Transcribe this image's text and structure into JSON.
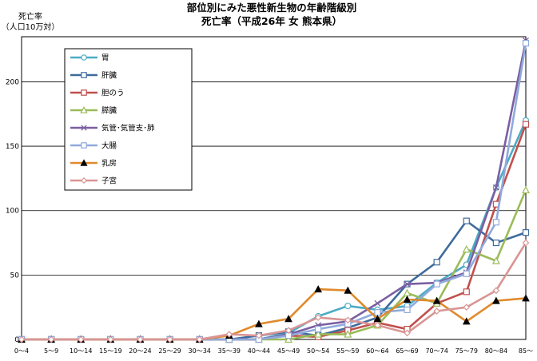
{
  "chart_data": {
    "type": "line",
    "title": "部位別にみた悪性新生物の年齢階級別",
    "subtitle": "死亡率（平成26年 女 熊本県）",
    "ylabel_line1": "死亡率",
    "ylabel_line2": "（人口10万対）",
    "xlabel": "",
    "ylim": [
      0,
      235
    ],
    "yticks": [
      "0",
      "50",
      "100",
      "150",
      "200"
    ],
    "grid": "horizontal",
    "legend_position": "top-left",
    "categories": [
      "0～4",
      "5～9",
      "10～14",
      "15～19",
      "20～24",
      "25～29",
      "30～34",
      "35～39",
      "40～44",
      "45～49",
      "50～54",
      "55～59",
      "60～64",
      "65～69",
      "70～74",
      "75～79",
      "80～84",
      "85～"
    ],
    "series": [
      {
        "name": "胃",
        "color": "#4bacc6",
        "marker": "circle",
        "values": [
          0,
          0,
          0,
          0,
          0,
          0,
          0,
          0,
          0,
          5,
          18,
          26,
          23,
          26,
          44,
          58,
          118,
          170
        ]
      },
      {
        "name": "肝臓",
        "color": "#3f6b9c",
        "marker": "square",
        "values": [
          0,
          0,
          0,
          0,
          0,
          0,
          0,
          0,
          3,
          6,
          3,
          9,
          17,
          43,
          60,
          92,
          75,
          83
        ]
      },
      {
        "name": "胆のう",
        "color": "#c0504d",
        "marker": "square",
        "values": [
          0,
          0,
          0,
          0,
          0,
          0,
          0,
          0,
          0,
          3,
          2,
          7,
          13,
          8,
          28,
          37,
          105,
          167
        ]
      },
      {
        "name": "膵臓",
        "color": "#9bbb59",
        "marker": "triangle",
        "values": [
          0,
          0,
          0,
          0,
          0,
          0,
          0,
          0,
          0,
          0,
          4,
          4,
          11,
          36,
          28,
          70,
          61,
          116
        ]
      },
      {
        "name": "気管･気管支･肺",
        "color": "#7b5fa2",
        "marker": "x",
        "values": [
          0,
          0,
          0,
          0,
          0,
          0,
          0,
          0,
          0,
          4,
          11,
          14,
          28,
          43,
          44,
          52,
          118,
          232
        ]
      },
      {
        "name": "大腸",
        "color": "#8faadc",
        "marker": "square",
        "values": [
          0,
          0,
          0,
          0,
          0,
          0,
          0,
          0,
          0,
          3,
          8,
          12,
          21,
          23,
          43,
          51,
          91,
          230
        ]
      },
      {
        "name": "乳房",
        "color": "#e08a2c",
        "marker": "triangle-fill",
        "values": [
          0,
          0,
          0,
          0,
          0,
          0,
          0,
          3,
          12,
          16,
          39,
          38,
          16,
          31,
          30,
          14,
          30,
          32
        ]
      },
      {
        "name": "子宮",
        "color": "#d99594",
        "marker": "diamond",
        "values": [
          0,
          0,
          0,
          0,
          0,
          0,
          0,
          4,
          3,
          7,
          17,
          15,
          11,
          5,
          22,
          25,
          38,
          75
        ]
      }
    ]
  }
}
